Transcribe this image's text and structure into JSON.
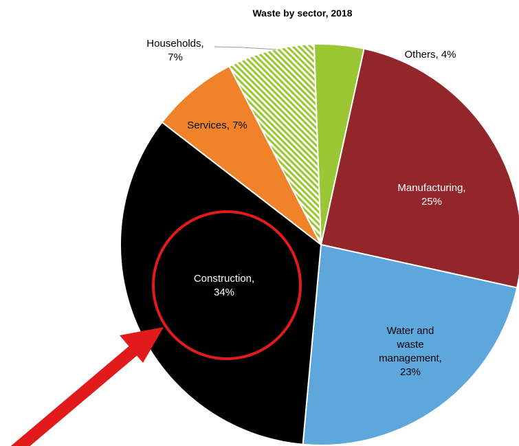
{
  "chart_data": {
    "type": "pie",
    "title": "Waste by sector, 2018",
    "slices": [
      {
        "label_lines": [
          "Others, 4%"
        ],
        "value": 4,
        "color": "#9cc735"
      },
      {
        "label_lines": [
          "Manufacturing,",
          "25%"
        ],
        "value": 25,
        "color": "#93262b"
      },
      {
        "label_lines": [
          "Water and",
          "waste",
          "management,",
          "23%"
        ],
        "value": 23,
        "color": "#5da7dc"
      },
      {
        "label_lines": [
          "Construction,",
          "34%"
        ],
        "value": 34,
        "color": "#000000"
      },
      {
        "label_lines": [
          "Services, 7%"
        ],
        "value": 7,
        "color": "#f0832a"
      },
      {
        "label_lines": [
          "Households,",
          "7%"
        ],
        "value": 7,
        "color": "#9cc735",
        "pattern": "diagonal-hatch"
      }
    ]
  },
  "annotations": {
    "highlight_circle_color": "#e11b1b",
    "arrow_color": "#e11b1b"
  }
}
